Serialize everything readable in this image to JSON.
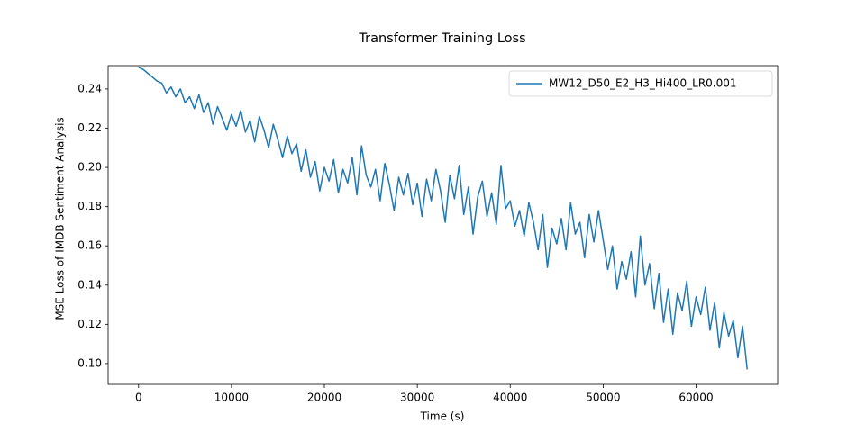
{
  "chart_data": {
    "type": "line",
    "title": "Transformer Training Loss",
    "x_label": "Time (s)",
    "y_label": "MSE Loss of IMDB Sentiment Analysis",
    "xlim": [
      -3275,
      68775
    ],
    "ylim": [
      0.0894,
      0.2519
    ],
    "xticks": [
      0,
      10000,
      20000,
      30000,
      40000,
      50000,
      60000
    ],
    "yticks": [
      {
        "value": 0.1,
        "label": "0.10"
      },
      0.12,
      0.14,
      0.16,
      0.18,
      {
        "value": 0.2,
        "label": "0.20"
      },
      0.22,
      0.24
    ],
    "legend": "upper right",
    "x": [
      0,
      500,
      1000,
      1500,
      2000,
      2500,
      3000,
      3500,
      4000,
      4500,
      5000,
      5500,
      6000,
      6500,
      7000,
      7500,
      8000,
      8500,
      9000,
      9500,
      10000,
      10500,
      11000,
      11500,
      12000,
      12500,
      13000,
      13500,
      14000,
      14500,
      15000,
      15500,
      16000,
      16500,
      17000,
      17500,
      18000,
      18500,
      19000,
      19500,
      20000,
      20500,
      21000,
      21500,
      22000,
      22500,
      23000,
      23500,
      24000,
      24500,
      25000,
      25500,
      26000,
      26500,
      27000,
      27500,
      28000,
      28500,
      29000,
      29500,
      30000,
      30500,
      31000,
      31500,
      32000,
      32500,
      33000,
      33500,
      34000,
      34500,
      35000,
      35500,
      36000,
      36500,
      37000,
      37500,
      38000,
      38500,
      39000,
      39500,
      40000,
      40500,
      41000,
      41500,
      42000,
      42500,
      43000,
      43500,
      44000,
      44500,
      45000,
      45500,
      46000,
      46500,
      47000,
      47500,
      48000,
      48500,
      49000,
      49500,
      50000,
      50500,
      51000,
      51500,
      52000,
      52500,
      53000,
      53500,
      54000,
      54500,
      55000,
      55500,
      56000,
      56500,
      57000,
      57500,
      58000,
      58500,
      59000,
      59500,
      60000,
      60500,
      61000,
      61500,
      62000,
      62500,
      63000,
      63500,
      64000,
      64500,
      65000,
      65500
    ],
    "series": [
      {
        "name": "MW12_D50_E2_H3_Hi400_LR0.001",
        "color": "#1f77b4",
        "values": [
          0.251,
          0.25,
          0.248,
          0.246,
          0.244,
          0.243,
          0.238,
          0.241,
          0.236,
          0.24,
          0.233,
          0.236,
          0.23,
          0.237,
          0.228,
          0.233,
          0.222,
          0.231,
          0.225,
          0.219,
          0.227,
          0.221,
          0.229,
          0.218,
          0.224,
          0.213,
          0.226,
          0.219,
          0.21,
          0.222,
          0.214,
          0.205,
          0.216,
          0.207,
          0.212,
          0.198,
          0.209,
          0.195,
          0.203,
          0.188,
          0.2,
          0.193,
          0.204,
          0.187,
          0.199,
          0.192,
          0.205,
          0.186,
          0.211,
          0.196,
          0.19,
          0.199,
          0.183,
          0.202,
          0.191,
          0.178,
          0.195,
          0.186,
          0.197,
          0.181,
          0.192,
          0.175,
          0.194,
          0.183,
          0.199,
          0.188,
          0.172,
          0.196,
          0.184,
          0.201,
          0.176,
          0.19,
          0.166,
          0.185,
          0.193,
          0.175,
          0.187,
          0.171,
          0.201,
          0.179,
          0.183,
          0.17,
          0.178,
          0.165,
          0.182,
          0.172,
          0.158,
          0.176,
          0.149,
          0.169,
          0.161,
          0.174,
          0.158,
          0.182,
          0.166,
          0.172,
          0.154,
          0.176,
          0.162,
          0.178,
          0.163,
          0.148,
          0.16,
          0.138,
          0.152,
          0.143,
          0.157,
          0.134,
          0.165,
          0.14,
          0.151,
          0.128,
          0.146,
          0.121,
          0.138,
          0.115,
          0.136,
          0.127,
          0.142,
          0.119,
          0.134,
          0.125,
          0.139,
          0.117,
          0.131,
          0.108,
          0.126,
          0.114,
          0.122,
          0.103,
          0.119,
          0.097
        ]
      }
    ]
  }
}
